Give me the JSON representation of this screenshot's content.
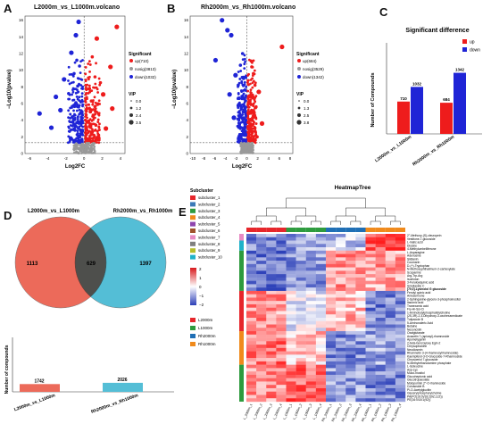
{
  "panels": {
    "a": {
      "label": "A",
      "title": "L2000m_vs_L1000m.volcano",
      "xlabel": "Log2FC",
      "ylabel": "−Log10(pvalue)",
      "x_ticks": [
        "-6",
        "-4",
        "-2",
        "0",
        "2",
        "4"
      ],
      "y_ticks": [
        "0",
        "2",
        "4",
        "6",
        "8",
        "10",
        "12",
        "14",
        "16"
      ],
      "legend_title": "Significant",
      "legend_items": [
        "up(710)",
        "nosig(3813)",
        "down(1032)"
      ],
      "vip_title": "VIP",
      "vip_items": [
        "0.0",
        "1.2",
        "2.4",
        "3.5"
      ]
    },
    "b": {
      "label": "B",
      "title": "Rh2000m_vs_Rh1000m.volcano",
      "xlabel": "Log2FC",
      "ylabel": "−Log10(pvalue)",
      "x_ticks": [
        "-10",
        "-8",
        "-6",
        "-4",
        "-2",
        "0",
        "2",
        "4",
        "6",
        "8"
      ],
      "y_ticks": [
        "0",
        "2",
        "4",
        "6",
        "8",
        "10",
        "12",
        "14",
        "16"
      ],
      "legend_title": "Significant",
      "legend_items": [
        "up(684)",
        "nosig(3529)",
        "down(1342)"
      ],
      "vip_title": "VIP",
      "vip_items": [
        "0.0",
        "1.3",
        "2.5",
        "3.8"
      ]
    },
    "c": {
      "label": "C",
      "title": "Significant difference",
      "ylabel": "Number of Compounds",
      "legend": [
        "up",
        "down"
      ],
      "colors": {
        "up": "#ee1c1c",
        "down": "#1f24d6"
      }
    },
    "d": {
      "label": "D",
      "set_a": "L2000m_vs_L1000m",
      "set_b": "Rh2000m_vs_Rh1000m",
      "only_a": "1113",
      "shared": "629",
      "only_b": "1397",
      "bar_ylabel": "Number of compounds",
      "bar_values": [
        "1742",
        "2026"
      ],
      "bar_cats": [
        "L2000m_vs_L1000m",
        "Rh2000m_vs_Rh1000m"
      ]
    },
    "e": {
      "label": "E",
      "title": "HeatmapTree",
      "subcluster_title": "Subcluster",
      "subclusters": [
        "subcluster_1",
        "subcluster_2",
        "subcluster_3",
        "subcluster_4",
        "subcluster_5",
        "subcluster_6",
        "subcluster_7",
        "subcluster_8",
        "subcluster_9",
        "subcluster_10"
      ],
      "subcluster_colors": [
        "#e6262b",
        "#3b7ab8",
        "#2e9b3e",
        "#f08a1c",
        "#8e44ad",
        "#a0522d",
        "#e78ac3",
        "#7f7f7f",
        "#b5bd2b",
        "#1fb2c9"
      ],
      "scale_ticks": [
        "2",
        "1",
        "0",
        "−1",
        "−2"
      ],
      "groups": [
        "L2000m",
        "L1000m",
        "Rh2000m",
        "Rh1000m"
      ],
      "group_colors": [
        "#e6262b",
        "#2e9b3e",
        "#1f6fb5",
        "#f08a1c"
      ],
      "compounds": [
        "2''-Methoxy-(S)-cleuropein",
        "Vestitone-7-glucoside",
        "L-malic acid",
        "Diosine",
        "4-Methylumbelliferone",
        "L-Asparagine",
        "Adenosine",
        "Sildianin",
        "Coumarin",
        "D-(+)-Tryptophan",
        "N-Methoxyphthalimum-2-carboxylate",
        "Scopanine",
        "Arg-Trp-Arg",
        "Isoeloton",
        "3-Feruloylquinic acid",
        "Smeliaside C",
        "[70,0]-Lysinolol G glucoside",
        "Ferulyl quinic acid",
        "Ameserinone",
        "2-Sphinganine-glycero-3-phosphoinositol",
        "Itaconic acid",
        "Tranexamic acid",
        "Fry-Hi-Ssi-Ci",
        "1-Aminobutylphosphatidylcholine",
        "(2S,3R)-2,3-Dihydroxy-3-oxohexanedioate",
        "Tulipsiode B",
        "5-Aminovaleric Acid",
        "Betaine",
        "Nesoncidin",
        "Oxalglutarate",
        "Acacetin 7-(apiosyl)-rhamnoside",
        "Apometygenin",
        "2-beta-benzoyloxy Egin-2",
        "Chrysophanein",
        "Neodiosmin",
        "Rhamnetin 3-(4-rhamnosylrhamnoside)",
        "Kaempferol-3-O-Glucoside-7-Rhamnoside",
        "Chrysoeriol 7-glucoside",
        "N-Methylethanolamine phosphate",
        "L-Isoleucine",
        "Asp-Lys",
        "Muco-Inositol",
        "Glucoheptonic acid",
        "Glucotropaeolate",
        "Motoporinin 2''-O-rhamnoside",
        "Coixaoside B",
        "Pi-O-Acetylglucitin",
        "Glycerylphosphorylcholine",
        "PA(PO(16:0)/18:2(9Z,12Z))",
        "PE(16:0/18:1(9Z))"
      ],
      "columns": [
        "L_2000m_1",
        "L_2000m_2",
        "L_2000m_3",
        "L_2000m_4",
        "L_1000m_1",
        "L_1000m_2",
        "L_1000m_3",
        "L_1000m_4",
        "Rh_2000m_1",
        "Rh_2000m_2",
        "Rh_2000m_3",
        "Rh_2000m_4",
        "Rh_1000m_1",
        "Rh_1000m_2",
        "Rh_1000m_3",
        "Rh_1000m_4"
      ]
    }
  },
  "chart_data": [
    {
      "type": "scatter",
      "title": "L2000m_vs_L1000m.volcano",
      "xlabel": "Log2FC",
      "ylabel": "−Log10(pvalue)",
      "xlim": [
        -6.5,
        4.5
      ],
      "ylim": [
        0,
        16.5
      ],
      "series": [
        {
          "name": "up(710)",
          "x": [
            3.6,
            1.4,
            2.9,
            0.9,
            1.2,
            1.8,
            0.6,
            2.1,
            0.8,
            1.5,
            3.1,
            0.7,
            1.0,
            0.5,
            1.3,
            2.4,
            0.9,
            1.6
          ],
          "y": [
            15.2,
            13.8,
            10.4,
            11.6,
            9.2,
            8.5,
            7.8,
            7.1,
            6.3,
            5.9,
            5.4,
            5.0,
            4.6,
            3.9,
            3.4,
            3.0,
            2.6,
            2.2
          ]
        },
        {
          "name": "down(1032)",
          "x": [
            -0.6,
            -0.9,
            -3.1,
            -1.4,
            -0.8,
            -2.2,
            -0.5,
            -1.1,
            -4.9,
            -0.7,
            -1.7,
            -2.6,
            -0.9,
            -0.6,
            -1.3,
            -3.6,
            -0.8,
            -1.0
          ],
          "y": [
            15.8,
            14.2,
            6.8,
            12.1,
            11.2,
            8.9,
            10.5,
            9.6,
            4.8,
            8.1,
            7.2,
            5.2,
            6.1,
            5.6,
            4.4,
            3.1,
            3.7,
            2.8
          ]
        },
        {
          "name": "nosig(3813)",
          "x": [
            -0.3,
            0.2,
            0.1,
            -0.2,
            0.4,
            -0.4,
            0.3,
            -0.1,
            0.6,
            -0.6
          ],
          "y": [
            0.5,
            0.9,
            0.3,
            1.1,
            0.7,
            0.4,
            1.2,
            0.8,
            0.2,
            0.6
          ]
        }
      ]
    },
    {
      "type": "scatter",
      "title": "Rh2000m_vs_Rh1000m.volcano",
      "xlabel": "Log2FC",
      "ylabel": "−Log10(pvalue)",
      "xlim": [
        -10.5,
        8.5
      ],
      "ylim": [
        0,
        16.5
      ],
      "series": [
        {
          "name": "up(684)",
          "x": [
            6.5,
            0.9,
            1.2,
            1.5,
            0.8,
            2.2,
            1.1,
            0.6,
            1.7,
            0.9,
            1.3,
            2.8,
            0.7,
            1.0,
            1.9
          ],
          "y": [
            12.8,
            10.4,
            9.6,
            8.2,
            11.1,
            7.4,
            6.8,
            6.0,
            5.6,
            5.0,
            4.4,
            3.6,
            3.1,
            2.5,
            2.0
          ]
        },
        {
          "name": "down(1342)",
          "x": [
            -4.6,
            -3.6,
            -2.9,
            -5.8,
            -1.2,
            -0.8,
            -2.1,
            -0.6,
            -1.6,
            -3.2,
            -0.9,
            -1.1,
            -0.7,
            -2.4,
            -1.4,
            -0.6
          ],
          "y": [
            16.0,
            14.8,
            14.2,
            11.2,
            10.6,
            12.0,
            9.4,
            9.0,
            8.2,
            7.1,
            6.6,
            5.8,
            5.0,
            4.3,
            3.4,
            2.5
          ]
        },
        {
          "name": "nosig(3529)",
          "x": [
            -0.3,
            0.2,
            0.1,
            -0.2,
            0.4,
            -0.4,
            0.3,
            -0.1,
            0.6,
            -0.6
          ],
          "y": [
            0.5,
            0.9,
            0.3,
            1.1,
            0.7,
            0.4,
            1.2,
            0.8,
            0.2,
            0.6
          ]
        }
      ]
    },
    {
      "type": "bar",
      "title": "Significant difference",
      "ylabel": "Number of Compounds",
      "categories": [
        "L2000m_vs_L1000m",
        "Rh2000m_vs_Rh1000m"
      ],
      "series": [
        {
          "name": "up",
          "values": [
            710,
            684
          ]
        },
        {
          "name": "down",
          "values": [
            1032,
            1342
          ]
        }
      ],
      "ylim": [
        0,
        2000
      ],
      "legend": "top-right"
    },
    {
      "type": "bar",
      "ylabel": "Number of compounds",
      "categories": [
        "L2000m_vs_L1000m",
        "Rh2000m_vs_Rh1000m"
      ],
      "values": [
        1742,
        2026
      ],
      "ylim": [
        0,
        2200
      ]
    },
    {
      "type": "heatmap",
      "title": "HeatmapTree",
      "scale": [
        -2,
        2
      ],
      "rows": 50,
      "cols": 16,
      "groups": [
        "L2000m",
        "L1000m",
        "Rh2000m",
        "Rh1000m"
      ]
    }
  ]
}
